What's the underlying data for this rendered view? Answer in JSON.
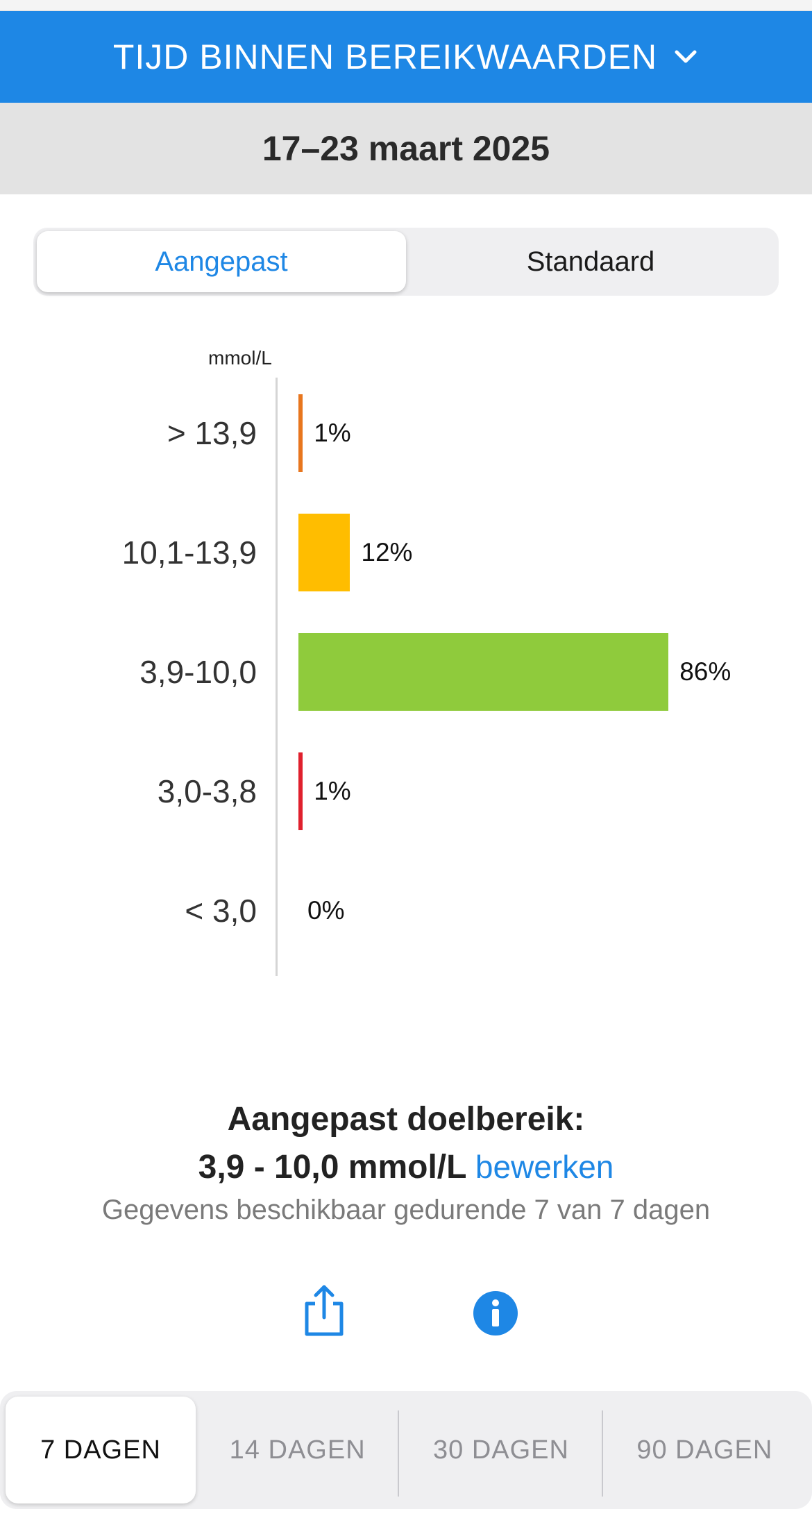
{
  "header": {
    "title": "TIJD BINNEN BEREIKWAARDEN",
    "chevron_icon": "chevron-down-icon"
  },
  "date_range": "17–23 maart 2025",
  "segment": {
    "custom_label": "Aangepast",
    "standard_label": "Standaard",
    "selected": "Aangepast"
  },
  "chart_data": {
    "type": "bar",
    "orientation": "horizontal",
    "unit_label": "mmol/L",
    "categories": [
      "> 13,9",
      "10,1-13,9",
      "3,9-10,0",
      "3,0-3,8",
      "< 3,0"
    ],
    "values": [
      1,
      12,
      86,
      1,
      0
    ],
    "value_labels": [
      "1%",
      "12%",
      "86%",
      "1%",
      "0%"
    ],
    "colors": [
      "#e8761e",
      "#ffbd00",
      "#8fcb3c",
      "#e0202d",
      "#e0202d"
    ],
    "xlim": [
      0,
      100
    ]
  },
  "summary": {
    "title": "Aangepast doelbereik:",
    "range": "3,9 - 10,0 mmol/L",
    "edit_label": "bewerken",
    "availability": "Gegevens beschikbaar gedurende 7 van 7 dagen"
  },
  "actions": {
    "share_icon": "share-icon",
    "info_icon": "info-icon"
  },
  "period_tabs": {
    "items": [
      "7 DAGEN",
      "14 DAGEN",
      "30 DAGEN",
      "90 DAGEN"
    ],
    "selected": "7 DAGEN"
  },
  "colors": {
    "accent": "#1e87e5",
    "header_bg": "#1e87e5",
    "date_bar_bg": "#e3e3e3"
  }
}
